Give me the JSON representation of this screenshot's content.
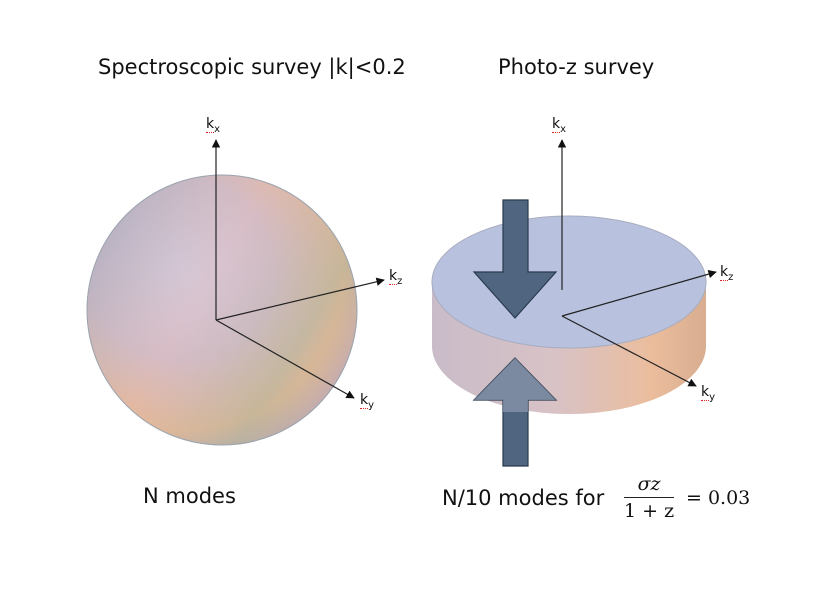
{
  "left_panel": {
    "title": "Spectroscopic survey |k|<0.2",
    "caption": "N modes",
    "axes": {
      "x": "k",
      "x_sub": "x",
      "y": "k",
      "y_sub": "y",
      "z": "k",
      "z_sub": "z"
    }
  },
  "right_panel": {
    "title": "Photo-z survey",
    "caption": "N/10 modes for",
    "axes": {
      "x": "k",
      "x_sub": "x",
      "y": "k",
      "y_sub": "y",
      "z": "k",
      "z_sub": "z"
    },
    "formula": {
      "numerator": "σz",
      "denominator": "1 + z",
      "equals": "= 0.03"
    }
  },
  "colors": {
    "arrow_fill": "#4f6580",
    "disk_top": "#b9c3e0",
    "axis": "#222222"
  }
}
